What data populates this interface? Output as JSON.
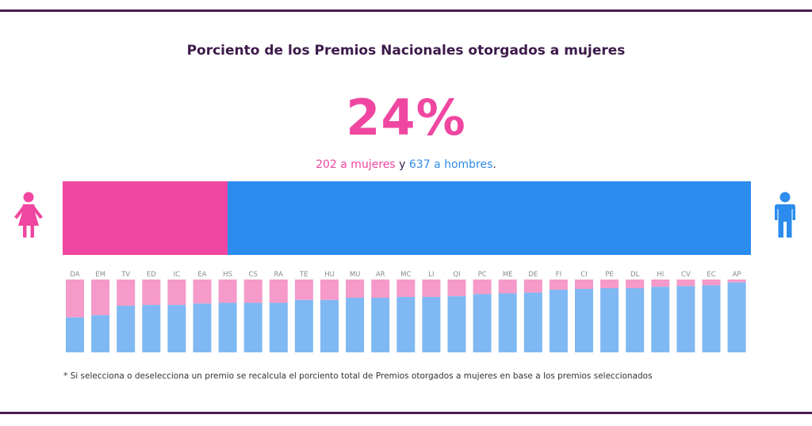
{
  "title": "Porciento de los Premios Nacionales otorgados a mujeres",
  "percent": "24%",
  "counts": {
    "women_text": "202 a mujeres",
    "connector": "y",
    "men_text": "637 a hombres",
    "end": "."
  },
  "colors": {
    "women": "#ef47a1",
    "men": "#2b8ced",
    "women_light": "#f59ac9",
    "men_light": "#7fb8f3",
    "rule": "#4b1a4b"
  },
  "icons": {
    "left": "female-icon",
    "right": "male-icon"
  },
  "main_bar": {
    "women_fraction": 0.24
  },
  "chart_data": {
    "type": "bar",
    "stacked": true,
    "normalized": true,
    "categories": [
      "DA",
      "EM",
      "TV",
      "ED",
      "IC",
      "EA",
      "HS",
      "CS",
      "RA",
      "TE",
      "HU",
      "MU",
      "AR",
      "MC",
      "LI",
      "QI",
      "PC",
      "ME",
      "DE",
      "FI",
      "CI",
      "PE",
      "DL",
      "HI",
      "CV",
      "EC",
      "AP"
    ],
    "series": [
      {
        "values": [
          0.52,
          0.49,
          0.36,
          0.35,
          0.35,
          0.33,
          0.32,
          0.32,
          0.32,
          0.28,
          0.28,
          0.25,
          0.25,
          0.24,
          0.24,
          0.23,
          0.2,
          0.19,
          0.18,
          0.14,
          0.13,
          0.12,
          0.12,
          0.1,
          0.09,
          0.08,
          0.04
        ]
      },
      {
        "values": [
          0.48,
          0.51,
          0.64,
          0.65,
          0.65,
          0.67,
          0.68,
          0.68,
          0.68,
          0.72,
          0.72,
          0.75,
          0.75,
          0.76,
          0.76,
          0.77,
          0.8,
          0.81,
          0.82,
          0.86,
          0.87,
          0.88,
          0.88,
          0.9,
          0.91,
          0.92,
          0.96
        ]
      }
    ],
    "ylim": [
      0,
      1
    ]
  },
  "footnote": "* Si selecciona o deselecciona un premio se recalcula el porciento total de Premios otorgados a mujeres en base a los premios seleccionados"
}
